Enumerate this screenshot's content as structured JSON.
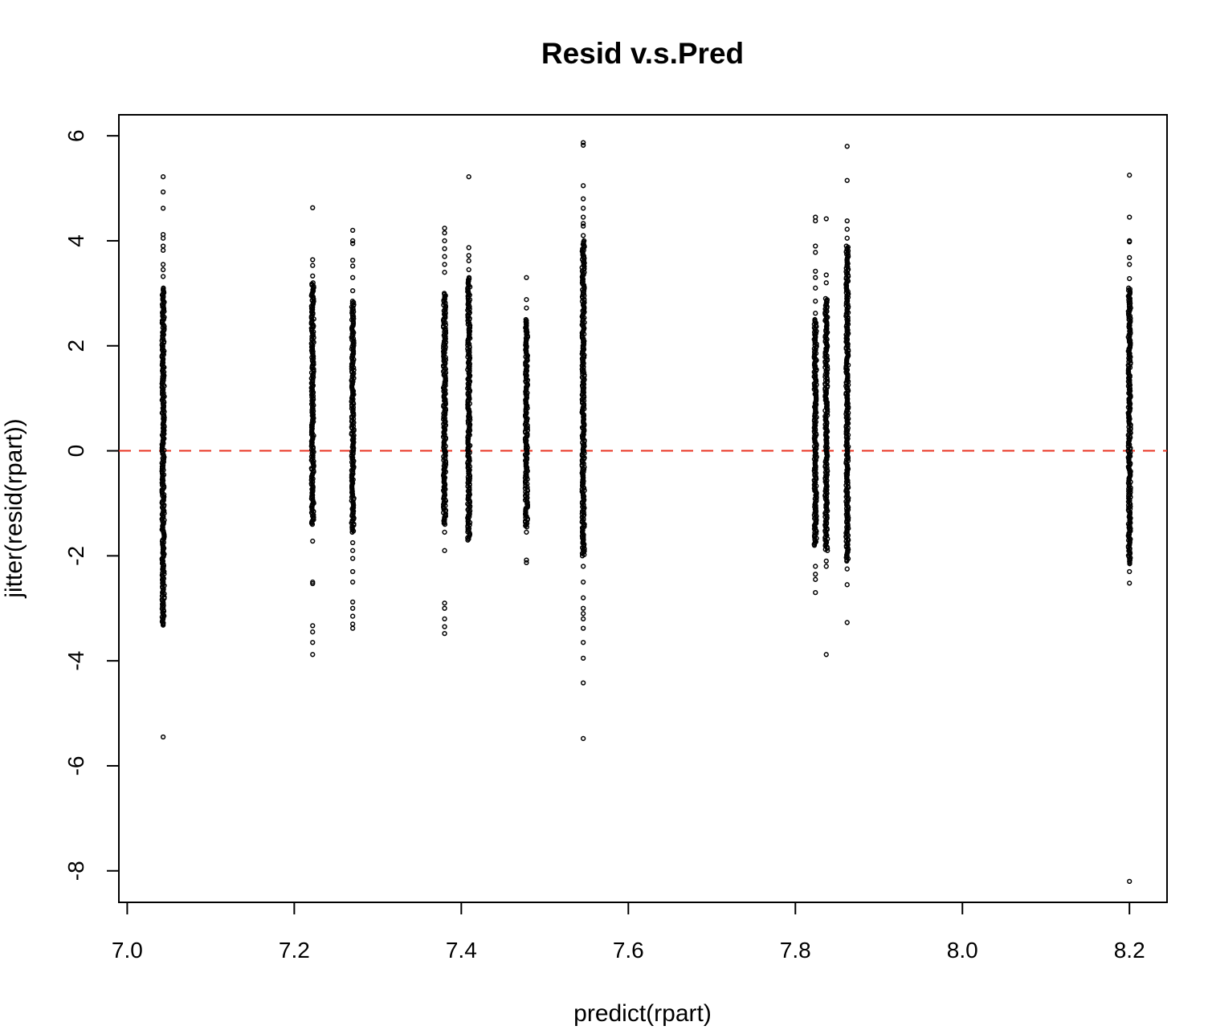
{
  "chart_data": {
    "type": "scatter",
    "title": "Resid v.s.Pred",
    "xlabel": "predict(rpart)",
    "ylabel": "jitter(resid(rpart))",
    "xlim": [
      6.99,
      8.245
    ],
    "ylim": [
      -8.6,
      6.4
    ],
    "xticks": [
      7.0,
      7.2,
      7.4,
      7.6,
      7.8,
      8.0,
      8.2
    ],
    "xtick_labels": [
      "7.0",
      "7.2",
      "7.4",
      "7.6",
      "7.8",
      "8.0",
      "8.2"
    ],
    "yticks": [
      -8,
      -6,
      -4,
      -2,
      0,
      2,
      4,
      6
    ],
    "ytick_labels": [
      "-8",
      "-6",
      "-4",
      "-2",
      "0",
      "2",
      "4",
      "6"
    ],
    "grid": false,
    "reference_line": {
      "y": 0,
      "color": "#e8311f",
      "style": "dashed"
    },
    "point_color": "#000000",
    "groups": [
      {
        "x": 7.043,
        "dense_range": [
          -3.3,
          3.1
        ],
        "outliers": [
          5.22,
          4.93,
          4.62,
          4.12,
          4.05,
          3.9,
          3.82,
          3.55,
          3.45,
          3.32,
          -3.32,
          -3.28,
          -5.45
        ]
      },
      {
        "x": 7.222,
        "dense_range": [
          -1.4,
          3.2
        ],
        "outliers": [
          4.63,
          3.64,
          3.53,
          3.33,
          -1.72,
          -2.5,
          -2.53,
          -3.33,
          -3.45,
          -3.65,
          -3.88
        ]
      },
      {
        "x": 7.27,
        "dense_range": [
          -1.55,
          2.85
        ],
        "outliers": [
          4.2,
          4.0,
          3.95,
          3.63,
          3.52,
          3.3,
          3.05,
          -1.75,
          -1.9,
          -2.05,
          -2.3,
          -2.5,
          -2.88,
          -3.0,
          -3.15,
          -3.3,
          -3.38
        ]
      },
      {
        "x": 7.38,
        "dense_range": [
          -1.4,
          3.0
        ],
        "outliers": [
          4.24,
          4.15,
          4.0,
          3.85,
          3.7,
          3.55,
          3.4,
          -1.55,
          -1.9,
          -2.9,
          -3.0,
          -3.2,
          -3.35,
          -3.48
        ]
      },
      {
        "x": 7.409,
        "dense_range": [
          -1.7,
          3.3
        ],
        "outliers": [
          5.22,
          3.87,
          3.72,
          3.62,
          3.45
        ]
      },
      {
        "x": 7.478,
        "dense_range": [
          -1.45,
          2.5
        ],
        "outliers": [
          3.3,
          2.88,
          2.72,
          -1.55,
          -2.08,
          -2.13
        ]
      },
      {
        "x": 7.546,
        "dense_range": [
          -2.0,
          4.0
        ],
        "outliers": [
          5.87,
          5.82,
          5.05,
          4.8,
          4.62,
          4.45,
          4.33,
          4.28,
          4.1,
          -2.2,
          -2.5,
          -2.8,
          -3.0,
          -3.1,
          -3.2,
          -3.38,
          -3.65,
          -3.95,
          -4.42,
          -5.48
        ]
      },
      {
        "x": 7.824,
        "dense_range": [
          -1.8,
          2.5
        ],
        "outliers": [
          4.45,
          4.38,
          3.9,
          3.78,
          3.42,
          3.3,
          3.1,
          2.85,
          2.62,
          -2.2,
          -2.35,
          -2.45,
          -2.7
        ]
      },
      {
        "x": 7.837,
        "dense_range": [
          -1.9,
          2.9
        ],
        "outliers": [
          4.42,
          3.35,
          3.2,
          -2.1,
          -2.2,
          -3.88
        ]
      },
      {
        "x": 7.862,
        "dense_range": [
          -2.1,
          3.9
        ],
        "outliers": [
          5.8,
          5.15,
          4.38,
          4.22,
          4.05,
          -2.25,
          -2.55,
          -3.27
        ]
      },
      {
        "x": 8.2,
        "dense_range": [
          -2.15,
          3.1
        ],
        "outliers": [
          5.25,
          4.45,
          4.0,
          3.98,
          3.68,
          3.55,
          3.28,
          -2.3,
          -2.52,
          -8.2
        ]
      }
    ]
  }
}
